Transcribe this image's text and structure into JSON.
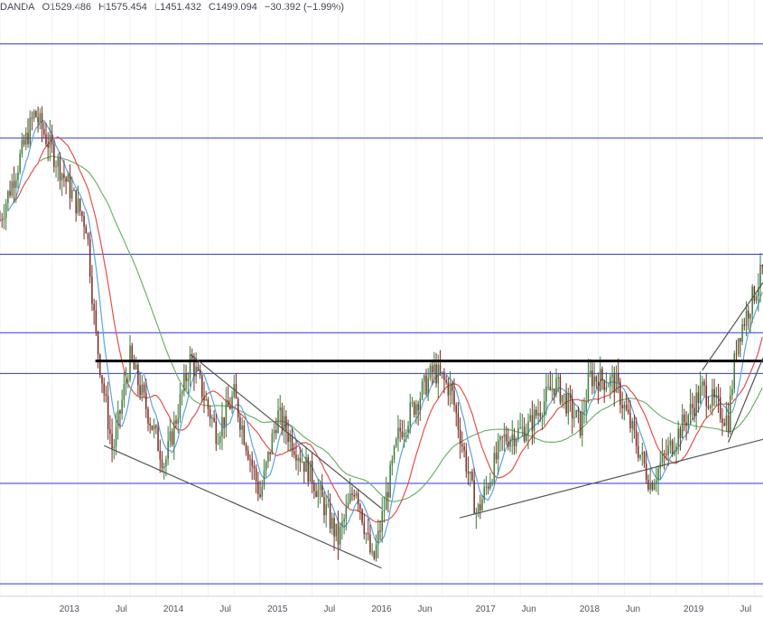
{
  "header": {
    "symbol_fragment": "DANDA",
    "open": "O1529.486",
    "high": "H1575.454",
    "low": "L1451.432",
    "close": "C1499.094",
    "change": "−30.392 (−1.99%)"
  },
  "colors": {
    "candle_up": "#3d7a3a",
    "candle_down": "#7a2a22",
    "hline": "#2e35d8",
    "ma_fast": "#5aa4e6",
    "ma_mid": "#e0524a",
    "ma_slow": "#6fb26a",
    "resistance": "#000000",
    "trendline": "#555555"
  },
  "chart_data": {
    "type": "candlestick",
    "x_axis_labels": [
      "2013",
      "Jul",
      "2014",
      "Jul",
      "2015",
      "Jul",
      "2016",
      "Jun",
      "2017",
      "Jun",
      "2018",
      "Jun",
      "2019",
      "Jul"
    ],
    "x_range": [
      "2012-05",
      "2019-09"
    ],
    "y_range": [
      1000,
      1950
    ],
    "price_path": [
      {
        "t": "2012-05",
        "p": 1600
      },
      {
        "t": "2012-09",
        "p": 1770
      },
      {
        "t": "2012-12",
        "p": 1680
      },
      {
        "t": "2013-03",
        "p": 1590
      },
      {
        "t": "2013-04",
        "p": 1420
      },
      {
        "t": "2013-06",
        "p": 1230
      },
      {
        "t": "2013-08",
        "p": 1380
      },
      {
        "t": "2013-12",
        "p": 1210
      },
      {
        "t": "2014-03",
        "p": 1380
      },
      {
        "t": "2014-06",
        "p": 1260
      },
      {
        "t": "2014-08",
        "p": 1320
      },
      {
        "t": "2014-11",
        "p": 1160
      },
      {
        "t": "2015-01",
        "p": 1290
      },
      {
        "t": "2015-05",
        "p": 1190
      },
      {
        "t": "2015-08",
        "p": 1090
      },
      {
        "t": "2015-10",
        "p": 1180
      },
      {
        "t": "2015-12",
        "p": 1050
      },
      {
        "t": "2016-03",
        "p": 1260
      },
      {
        "t": "2016-07",
        "p": 1360
      },
      {
        "t": "2016-09",
        "p": 1330
      },
      {
        "t": "2016-12",
        "p": 1130
      },
      {
        "t": "2017-03",
        "p": 1250
      },
      {
        "t": "2017-06",
        "p": 1270
      },
      {
        "t": "2017-09",
        "p": 1340
      },
      {
        "t": "2017-12",
        "p": 1270
      },
      {
        "t": "2018-01",
        "p": 1350
      },
      {
        "t": "2018-04",
        "p": 1340
      },
      {
        "t": "2018-08",
        "p": 1180
      },
      {
        "t": "2018-10",
        "p": 1230
      },
      {
        "t": "2019-02",
        "p": 1330
      },
      {
        "t": "2019-05",
        "p": 1280
      },
      {
        "t": "2019-06",
        "p": 1410
      },
      {
        "t": "2019-09",
        "p": 1520
      }
    ],
    "horizontal_levels": [
      1880,
      1730,
      1545,
      1420,
      1355,
      1180,
      1020
    ],
    "resistance_level": 1375,
    "trendlines": [
      {
        "from": {
          "t": "2013-05",
          "p": 1240
        },
        "to": {
          "t": "2016-01",
          "p": 1045
        }
      },
      {
        "from": {
          "t": "2014-03",
          "p": 1385
        },
        "to": {
          "t": "2016-01",
          "p": 1140
        }
      },
      {
        "from": {
          "t": "2016-10",
          "p": 1125
        },
        "to": {
          "t": "2019-09",
          "p": 1250
        }
      },
      {
        "from": {
          "t": "2019-02",
          "p": 1360
        },
        "to": {
          "t": "2019-09",
          "p": 1500
        }
      },
      {
        "from": {
          "t": "2019-05",
          "p": 1245
        },
        "to": {
          "t": "2019-09",
          "p": 1380
        }
      }
    ]
  }
}
